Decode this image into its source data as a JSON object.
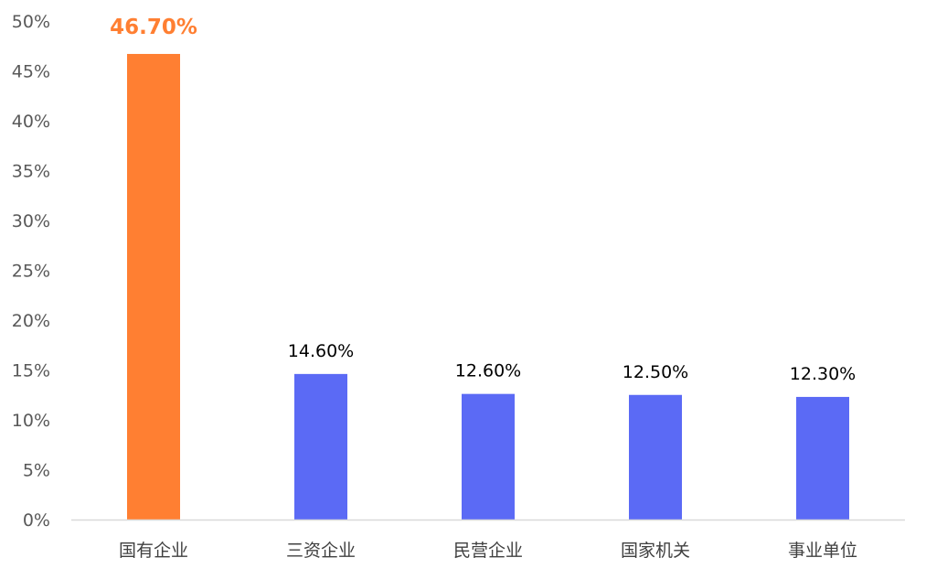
{
  "chart_data": {
    "type": "bar",
    "categories": [
      "国有企业",
      "三资企业",
      "民营企业",
      "国家机关",
      "事业单位"
    ],
    "values": [
      46.7,
      14.6,
      12.6,
      12.5,
      12.3
    ],
    "data_labels": [
      "46.70%",
      "14.60%",
      "12.60%",
      "12.50%",
      "12.30%"
    ],
    "highlight_index": 0,
    "yticks": [
      "0%",
      "5%",
      "10%",
      "15%",
      "20%",
      "25%",
      "30%",
      "35%",
      "40%",
      "45%",
      "50%"
    ],
    "ylim": [
      0,
      50
    ],
    "grid": false,
    "legend": "none",
    "title": "",
    "xlabel": "",
    "ylabel": ""
  },
  "colors": {
    "highlight": "#FF7F32",
    "bar": "#5B6AF5",
    "axis": "#D9D9D9"
  }
}
